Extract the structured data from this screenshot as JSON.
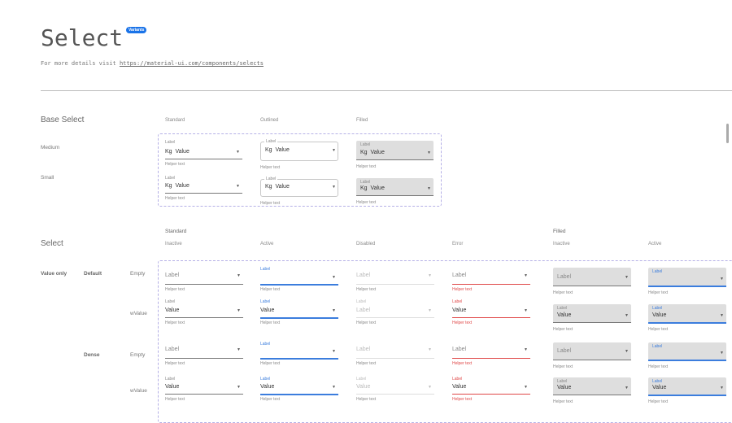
{
  "header": {
    "title": "Select",
    "badge": "Variants",
    "subtitle_prefix": "For more details visit ",
    "link": "https://material-ui.com/components/selects"
  },
  "base": {
    "title": "Base Select",
    "columns": [
      "Standard",
      "Outlined",
      "Filled"
    ],
    "rows": [
      {
        "label": "Medium",
        "cells": [
          {
            "label": "Label",
            "prefix": "Kg",
            "value": "Value",
            "helper": "Helper text"
          },
          {
            "label": "Label",
            "prefix": "Kg",
            "value": "Value",
            "helper": "Helper text"
          },
          {
            "label": "Label",
            "prefix": "Kg",
            "value": "Value",
            "helper": "Helper text"
          }
        ]
      },
      {
        "label": "Small",
        "cells": [
          {
            "label": "Label",
            "prefix": "Kg",
            "value": "Value",
            "helper": "Helper text"
          },
          {
            "label": "Label",
            "prefix": "Kg",
            "value": "Value",
            "helper": "Helper text"
          },
          {
            "label": "Label",
            "prefix": "Kg",
            "value": "Value",
            "helper": "Helper text"
          }
        ]
      }
    ]
  },
  "select": {
    "title": "Select",
    "groups": [
      "Standard",
      "Filled"
    ],
    "columns": [
      "Inactive",
      "Active",
      "Disabled",
      "Error",
      "Inactive",
      "Active"
    ],
    "group_label": "Value only",
    "rows": [
      {
        "density": "Default",
        "state": "Empty",
        "cells": [
          {
            "label": "",
            "value": "Label",
            "helper": "Helper text"
          },
          {
            "label": "Label",
            "value": "",
            "helper": "Helper text"
          },
          {
            "label": "",
            "value": "Label",
            "helper": "Helper text"
          },
          {
            "label": "",
            "value": "Label",
            "helper": "Helper text"
          },
          {
            "label": "",
            "value": "Label",
            "helper": "Helper text"
          },
          {
            "label": "Label",
            "value": "",
            "helper": "Helper text"
          }
        ]
      },
      {
        "density": "",
        "state": "wValue",
        "cells": [
          {
            "label": "Label",
            "value": "Value",
            "helper": "Helper text"
          },
          {
            "label": "Label",
            "value": "Value",
            "helper": "Helper text"
          },
          {
            "label": "Label",
            "value": "Label",
            "helper": "Helper text"
          },
          {
            "label": "Label",
            "value": "Value",
            "helper": "Helper text"
          },
          {
            "label": "Label",
            "value": "Value",
            "helper": "Helper text"
          },
          {
            "label": "Label",
            "value": "Value",
            "helper": "Helper text"
          }
        ]
      },
      {
        "density": "Dense",
        "state": "Empty",
        "cells": [
          {
            "label": "",
            "value": "Label",
            "helper": "Helper text"
          },
          {
            "label": "Label",
            "value": "",
            "helper": "Helper text"
          },
          {
            "label": "",
            "value": "Label",
            "helper": "Helper text"
          },
          {
            "label": "",
            "value": "Label",
            "helper": "Helper text"
          },
          {
            "label": "",
            "value": "Label",
            "helper": "Helper text"
          },
          {
            "label": "Label",
            "value": "",
            "helper": "Helper text"
          }
        ]
      },
      {
        "density": "",
        "state": "wValue",
        "cells": [
          {
            "label": "Label",
            "value": "Value",
            "helper": "Helper text"
          },
          {
            "label": "Label",
            "value": "Value",
            "helper": "Helper text"
          },
          {
            "label": "Label",
            "value": "Value",
            "helper": "Helper text"
          },
          {
            "label": "Label",
            "value": "Value",
            "helper": "Helper text"
          },
          {
            "label": "Label",
            "value": "Value",
            "helper": "Helper text"
          },
          {
            "label": "Label",
            "value": "Value",
            "helper": "Helper text"
          }
        ]
      }
    ]
  },
  "colors": {
    "accent": "#3b7ddd",
    "error": "#e04848",
    "badge": "#1a73e8",
    "dashed": "#b5b0e6"
  },
  "icons": {
    "dropdown": "arrow-drop-down-icon"
  }
}
